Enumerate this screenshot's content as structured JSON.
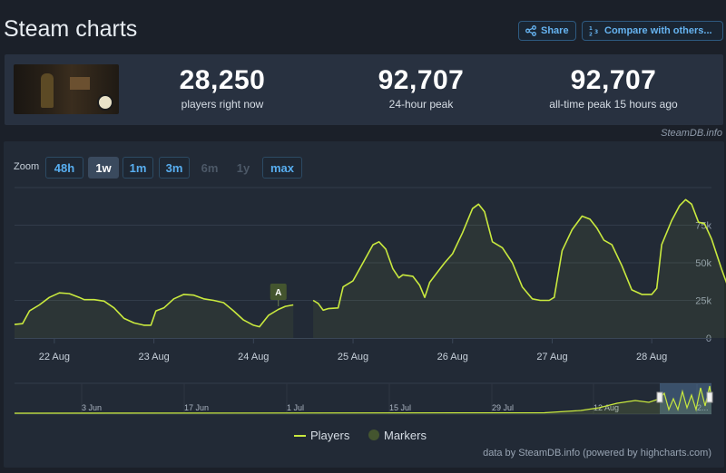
{
  "header": {
    "title": "Steam charts",
    "share_label": "Share",
    "compare_label": "Compare with others..."
  },
  "stats": [
    {
      "value": "28,250",
      "label": "players right now"
    },
    {
      "value": "92,707",
      "label": "24-hour peak"
    },
    {
      "value": "92,707",
      "label": "all-time peak 15 hours ago"
    }
  ],
  "credit_top": "SteamDB.info",
  "zoom": {
    "label": "Zoom",
    "options": [
      "48h",
      "1w",
      "1m",
      "3m",
      "6m",
      "1y",
      "max"
    ],
    "active": "1w",
    "disabled": [
      "6m",
      "1y"
    ]
  },
  "chart_data": {
    "type": "line",
    "xlabel": "",
    "ylabel": "",
    "x_ticks": [
      "22 Aug",
      "23 Aug",
      "24 Aug",
      "25 Aug",
      "26 Aug",
      "27 Aug",
      "28 Aug"
    ],
    "xlim": [
      21.6,
      28.6
    ],
    "y_ticks": [
      0,
      25000,
      50000,
      75000
    ],
    "y_tick_labels": [
      "0",
      "25k",
      "50k",
      "75k"
    ],
    "ylim": [
      0,
      100000
    ],
    "grid": true,
    "series": [
      {
        "name": "Players",
        "color": "#c9e93e",
        "segments": [
          [
            [
              21.6,
              9000
            ],
            [
              21.68,
              9500
            ],
            [
              21.75,
              18000
            ],
            [
              21.85,
              22000
            ],
            [
              21.95,
              27000
            ],
            [
              22.05,
              30000
            ],
            [
              22.15,
              29500
            ],
            [
              22.25,
              27000
            ],
            [
              22.3,
              25500
            ],
            [
              22.4,
              25500
            ],
            [
              22.5,
              24500
            ],
            [
              22.6,
              20000
            ],
            [
              22.7,
              13000
            ],
            [
              22.8,
              10000
            ],
            [
              22.9,
              8500
            ],
            [
              22.97,
              8500
            ],
            [
              23.02,
              18000
            ],
            [
              23.1,
              20000
            ],
            [
              23.2,
              26000
            ],
            [
              23.3,
              29000
            ],
            [
              23.4,
              28500
            ],
            [
              23.5,
              26000
            ],
            [
              23.6,
              25000
            ],
            [
              23.7,
              23500
            ],
            [
              23.8,
              18000
            ],
            [
              23.9,
              12000
            ],
            [
              24.0,
              8500
            ],
            [
              24.06,
              7500
            ],
            [
              24.15,
              15000
            ],
            [
              24.25,
              19000
            ],
            [
              24.32,
              21000
            ],
            [
              24.4,
              22000
            ]
          ],
          [
            [
              24.6,
              25000
            ],
            [
              24.65,
              23000
            ],
            [
              24.7,
              18500
            ],
            [
              24.75,
              19500
            ],
            [
              24.85,
              20000
            ],
            [
              24.9,
              34000
            ],
            [
              25.0,
              38000
            ],
            [
              25.1,
              50000
            ],
            [
              25.2,
              62000
            ],
            [
              25.26,
              64000
            ],
            [
              25.33,
              59000
            ],
            [
              25.4,
              46000
            ],
            [
              25.46,
              40000
            ],
            [
              25.5,
              42000
            ],
            [
              25.6,
              41000
            ],
            [
              25.67,
              35000
            ],
            [
              25.72,
              27000
            ],
            [
              25.77,
              37000
            ],
            [
              25.85,
              44000
            ],
            [
              25.92,
              50000
            ],
            [
              26.0,
              56000
            ],
            [
              26.1,
              70000
            ],
            [
              26.2,
              86000
            ],
            [
              26.26,
              89000
            ],
            [
              26.32,
              84000
            ],
            [
              26.4,
              64000
            ],
            [
              26.5,
              60000
            ],
            [
              26.6,
              50000
            ],
            [
              26.7,
              34000
            ],
            [
              26.8,
              26000
            ],
            [
              26.88,
              25000
            ],
            [
              26.97,
              25000
            ],
            [
              27.02,
              27000
            ],
            [
              27.1,
              58000
            ],
            [
              27.2,
              72000
            ],
            [
              27.3,
              81000
            ],
            [
              27.38,
              79000
            ],
            [
              27.45,
              73000
            ],
            [
              27.52,
              65000
            ],
            [
              27.6,
              62000
            ],
            [
              27.7,
              48000
            ],
            [
              27.8,
              32000
            ],
            [
              27.9,
              29000
            ],
            [
              28.0,
              29000
            ],
            [
              28.05,
              33000
            ],
            [
              28.1,
              62000
            ],
            [
              28.2,
              78000
            ],
            [
              28.28,
              88000
            ],
            [
              28.34,
              92000
            ],
            [
              28.4,
              89000
            ],
            [
              28.47,
              77000
            ],
            [
              28.53,
              76000
            ],
            [
              28.6,
              66000
            ],
            [
              28.7,
              46000
            ],
            [
              28.76,
              35000
            ],
            [
              28.82,
              32000
            ],
            [
              28.86,
              33000
            ]
          ]
        ]
      }
    ],
    "markers": [
      {
        "label": "A",
        "x": 24.25
      }
    ],
    "navigator": {
      "x_ticks": [
        "3 Jun",
        "17 Jun",
        "1 Jul",
        "15 Jul",
        "29 Jul",
        "12 Aug",
        "2..."
      ]
    },
    "legend": {
      "placement": "bottom-center",
      "items": [
        {
          "name": "Players",
          "color": "#c9e93e"
        },
        {
          "name": "Markers",
          "color": "#44552f"
        }
      ]
    }
  },
  "credit_bottom": "data by SteamDB.info (powered by highcharts.com)"
}
